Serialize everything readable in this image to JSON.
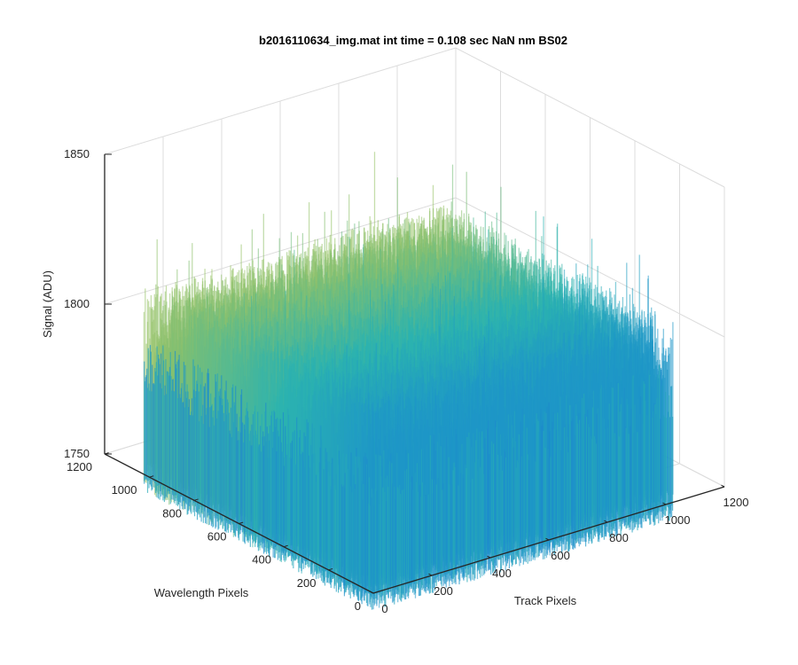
{
  "chart_data": {
    "type": "surface",
    "title": "b2016110634_img.mat int time = 0.108 sec  NaN nm BS02",
    "xlabel": "Track Pixels",
    "ylabel": "Wavelength Pixels",
    "zlabel": "Signal (ADU)",
    "xlim": [
      0,
      1200
    ],
    "ylim": [
      0,
      1200
    ],
    "zlim": [
      1750,
      1850
    ],
    "xticks": [
      "0",
      "200",
      "400",
      "600",
      "800",
      "1000",
      "1200"
    ],
    "yticks": [
      "0",
      "200",
      "400",
      "600",
      "800",
      "1000",
      "1200"
    ],
    "zticks": [
      "1750",
      "1800",
      "1850"
    ],
    "grid": true,
    "colormap": "parula",
    "colors": {
      "low": "#1f77d4",
      "mid": "#2bb3b0",
      "high": "#c9c84a"
    },
    "surface_summary": {
      "x_extent": [
        0,
        1024
      ],
      "y_extent": [
        0,
        1024
      ],
      "typical_signal_range": [
        1762,
        1812
      ],
      "mean_signal": 1785,
      "peak_signal": 1848
    }
  }
}
